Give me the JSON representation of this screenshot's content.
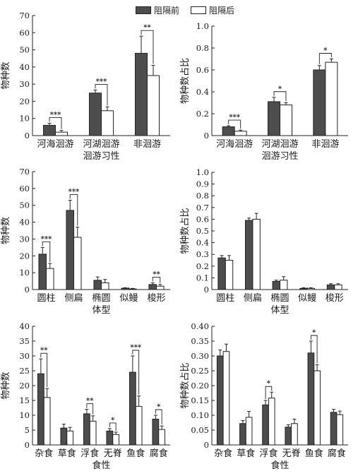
{
  "legend": {
    "before": {
      "label": "阻隔前",
      "color": "#4d4d4d"
    },
    "after": {
      "label": "阻隔后",
      "color": "#ffffff"
    }
  },
  "chart_data": [
    {
      "type": "bar",
      "id": "mig-count",
      "categories": [
        "河海洄游",
        "河湖洄游",
        "非洄游"
      ],
      "xlabel": "洄游习性",
      "ylabel": "物种数",
      "ylim": [
        0,
        70
      ],
      "yticks": [
        "0",
        "10",
        "20",
        "30",
        "40",
        "50",
        "60",
        "70"
      ],
      "series": [
        {
          "name": "阻隔前",
          "values": [
            6,
            24.8,
            48
          ],
          "errors": [
            1.2,
            1.8,
            10
          ]
        },
        {
          "name": "阻隔后",
          "values": [
            2,
            14.5,
            35
          ],
          "errors": [
            1,
            2.3,
            6
          ]
        }
      ],
      "significance": [
        "***",
        "***",
        "**"
      ]
    },
    {
      "type": "bar",
      "id": "mig-ratio",
      "categories": [
        "河海洄游",
        "河湖洄游",
        "非洄游"
      ],
      "xlabel": "洄游习性",
      "ylabel": "物种数占比",
      "ylim": [
        0,
        1.0
      ],
      "yticks": [
        "0",
        "0.2",
        "0.4",
        "0.6",
        "0.8",
        "1.0"
      ],
      "series": [
        {
          "name": "阻隔前",
          "values": [
            0.08,
            0.31,
            0.6
          ],
          "errors": [
            0.01,
            0.04,
            0.04
          ]
        },
        {
          "name": "阻隔后",
          "values": [
            0.04,
            0.28,
            0.67
          ],
          "errors": [
            0.01,
            0.02,
            0.03
          ]
        }
      ],
      "significance": [
        "***",
        "*",
        "*"
      ]
    },
    {
      "type": "bar",
      "id": "shape-count",
      "categories": [
        "圆柱",
        "侧扁",
        "椭圆",
        "似鳗",
        "梭形"
      ],
      "xlabel": "体型",
      "ylabel": "物种数",
      "ylim": [
        0,
        70
      ],
      "yticks": [
        "0",
        "10",
        "20",
        "30",
        "40",
        "50",
        "60",
        "70"
      ],
      "series": [
        {
          "name": "阻隔前",
          "values": [
            21,
            47,
            5.5,
            0.8,
            3
          ],
          "errors": [
            4,
            6,
            2,
            0.3,
            1
          ]
        },
        {
          "name": "阻隔后",
          "values": [
            12.5,
            31,
            4,
            0.4,
            2
          ],
          "errors": [
            3,
            6,
            2,
            0.3,
            1
          ]
        }
      ],
      "significance": [
        "***",
        "***",
        "",
        "",
        "**"
      ]
    },
    {
      "type": "bar",
      "id": "shape-ratio",
      "categories": [
        "圆柱",
        "侧扁",
        "椭圆",
        "似鳗",
        "梭形"
      ],
      "xlabel": "体型",
      "ylabel": "物种数占比",
      "ylim": [
        0,
        1.0
      ],
      "yticks": [
        "0",
        "0.1",
        "0.2",
        "0.3",
        "0.4",
        "0.5",
        "0.6",
        "0.7",
        "0.8",
        "0.9",
        "1.0"
      ],
      "series": [
        {
          "name": "阻隔前",
          "values": [
            0.27,
            0.59,
            0.07,
            0.01,
            0.04
          ],
          "errors": [
            0.02,
            0.02,
            0.01,
            0.005,
            0.01
          ]
        },
        {
          "name": "阻隔后",
          "values": [
            0.25,
            0.6,
            0.08,
            0.01,
            0.04
          ],
          "errors": [
            0.04,
            0.05,
            0.03,
            0.005,
            0.01
          ]
        }
      ],
      "significance": [
        "",
        "",
        "",
        "",
        ""
      ]
    },
    {
      "type": "bar",
      "id": "diet-count",
      "categories": [
        "杂食",
        "草食",
        "浮食",
        "无脊",
        "鱼食",
        "腐食"
      ],
      "xlabel": "食性",
      "ylabel": "物种数",
      "ylim": [
        0,
        40
      ],
      "yticks": [
        "0",
        "5",
        "10",
        "15",
        "20",
        "25",
        "30",
        "35",
        "40"
      ],
      "series": [
        {
          "name": "阻隔前",
          "values": [
            24,
            5.7,
            10.5,
            4.7,
            24.5,
            8.7
          ],
          "errors": [
            5,
            1.3,
            1.5,
            0.8,
            5.5,
            1.3
          ]
        },
        {
          "name": "阻隔后",
          "values": [
            16,
            4.7,
            8,
            3.5,
            13,
            5.2
          ],
          "errors": [
            3,
            1.2,
            1.8,
            0.8,
            3.5,
            1.2
          ]
        }
      ],
      "significance": [
        "**",
        "",
        "**",
        "*",
        "***",
        "*"
      ]
    },
    {
      "type": "bar",
      "id": "diet-ratio",
      "categories": [
        "杂食",
        "草食",
        "浮食",
        "无脊",
        "鱼食",
        "腐食"
      ],
      "xlabel": "食性",
      "ylabel": "物种数占比",
      "ylim": [
        0,
        0.4
      ],
      "yticks": [
        "0",
        "0.05",
        "0.10",
        "0.15",
        "0.20",
        "0.25",
        "0.30",
        "0.35",
        "0.40"
      ],
      "series": [
        {
          "name": "阻隔前",
          "values": [
            0.3,
            0.072,
            0.135,
            0.06,
            0.31,
            0.11
          ],
          "errors": [
            0.02,
            0.01,
            0.015,
            0.008,
            0.04,
            0.01
          ]
        },
        {
          "name": "阻隔后",
          "values": [
            0.315,
            0.093,
            0.158,
            0.072,
            0.25,
            0.102
          ],
          "errors": [
            0.025,
            0.02,
            0.02,
            0.015,
            0.02,
            0.012
          ]
        }
      ],
      "significance": [
        "",
        "",
        "*",
        "",
        "*",
        ""
      ]
    }
  ]
}
